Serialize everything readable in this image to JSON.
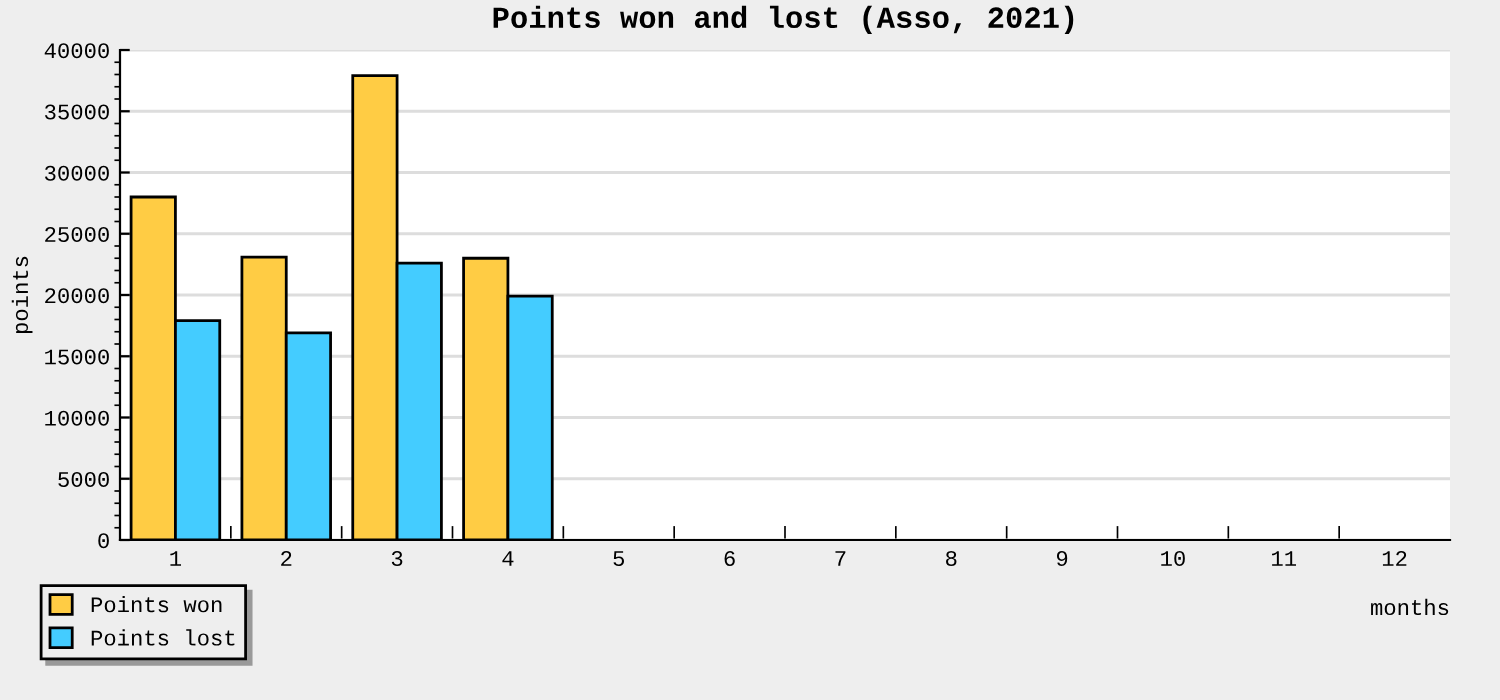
{
  "chart_data": {
    "type": "bar",
    "title": "Points won and lost (Asso, 2021)",
    "xlabel": "months",
    "ylabel": "points",
    "categories": [
      "1",
      "2",
      "3",
      "4",
      "5",
      "6",
      "7",
      "8",
      "9",
      "10",
      "11",
      "12"
    ],
    "series": [
      {
        "name": "Points won",
        "color": "#ffcc44",
        "values": [
          28000,
          23100,
          37900,
          23000,
          null,
          null,
          null,
          null,
          null,
          null,
          null,
          null
        ]
      },
      {
        "name": "Points lost",
        "color": "#44ccff",
        "values": [
          17900,
          16900,
          22600,
          19900,
          null,
          null,
          null,
          null,
          null,
          null,
          null,
          null
        ]
      }
    ],
    "ylim": [
      0,
      40000
    ],
    "yticks": [
      0,
      5000,
      10000,
      15000,
      20000,
      25000,
      30000,
      35000,
      40000
    ],
    "grid": "y",
    "legend": "bottom left"
  }
}
